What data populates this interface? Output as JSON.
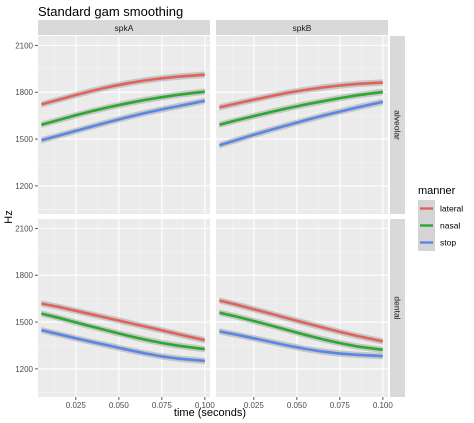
{
  "chart_data": {
    "type": "line",
    "title": "Standard gam smoothing",
    "xlabel": "time (seconds)",
    "ylabel": "Hz",
    "xlim": [
      0.003,
      0.103
    ],
    "ylim": [
      1020,
      2160
    ],
    "x_ticks": [
      0.025,
      0.05,
      0.075,
      0.1
    ],
    "x_tick_labels": [
      "0.025",
      "0.050",
      "0.075",
      "0.100"
    ],
    "y_ticks": [
      1200,
      1500,
      1800,
      2100
    ],
    "y_tick_labels": [
      "1200",
      "1500",
      "1800",
      "2100"
    ],
    "grid": true,
    "legend": {
      "title": "manner",
      "position": "right",
      "entries": [
        {
          "label": "lateral",
          "color": "#E0635B"
        },
        {
          "label": "nasal",
          "color": "#2BA830"
        },
        {
          "label": "stop",
          "color": "#5A86E6"
        }
      ]
    },
    "col_strips": [
      "spkA",
      "spkB"
    ],
    "row_strips": [
      "alveolar",
      "dental"
    ],
    "x": [
      0.005,
      0.015,
      0.025,
      0.035,
      0.045,
      0.055,
      0.065,
      0.075,
      0.085,
      0.1
    ],
    "panels": [
      {
        "col": "spkA",
        "row": "alveolar",
        "series": [
          {
            "name": "lateral",
            "values": [
              1722,
              1752,
              1782,
              1810,
              1835,
              1857,
              1875,
              1889,
              1900,
              1912
            ]
          },
          {
            "name": "nasal",
            "values": [
              1592,
              1622,
              1652,
              1680,
              1706,
              1729,
              1750,
              1768,
              1784,
              1803
            ]
          },
          {
            "name": "stop",
            "values": [
              1492,
              1522,
              1552,
              1582,
              1612,
              1640,
              1666,
              1690,
              1712,
              1745
            ]
          }
        ]
      },
      {
        "col": "spkB",
        "row": "alveolar",
        "series": [
          {
            "name": "lateral",
            "values": [
              1703,
              1728,
              1752,
              1775,
              1797,
              1815,
              1830,
              1843,
              1853,
              1862
            ]
          },
          {
            "name": "nasal",
            "values": [
              1592,
              1620,
              1647,
              1673,
              1698,
              1721,
              1742,
              1762,
              1780,
              1802
            ]
          },
          {
            "name": "stop",
            "values": [
              1460,
              1494,
              1527,
              1559,
              1590,
              1620,
              1649,
              1676,
              1702,
              1738
            ]
          }
        ]
      },
      {
        "col": "spkA",
        "row": "dental",
        "series": [
          {
            "name": "lateral",
            "values": [
              1618,
              1597,
              1572,
              1547,
              1522,
              1497,
              1472,
              1447,
              1421,
              1384
            ]
          },
          {
            "name": "nasal",
            "values": [
              1554,
              1527,
              1498,
              1469,
              1441,
              1413,
              1388,
              1366,
              1348,
              1326
            ]
          },
          {
            "name": "stop",
            "values": [
              1448,
              1422,
              1396,
              1371,
              1347,
              1323,
              1300,
              1280,
              1265,
              1251
            ]
          }
        ]
      },
      {
        "col": "spkB",
        "row": "dental",
        "series": [
          {
            "name": "lateral",
            "values": [
              1638,
              1611,
              1582,
              1553,
              1523,
              1494,
              1465,
              1437,
              1411,
              1376
            ]
          },
          {
            "name": "nasal",
            "values": [
              1560,
              1535,
              1507,
              1478,
              1448,
              1418,
              1390,
              1365,
              1344,
              1322
            ]
          },
          {
            "name": "stop",
            "values": [
              1440,
              1419,
              1396,
              1372,
              1349,
              1328,
              1311,
              1298,
              1290,
              1282
            ]
          }
        ]
      }
    ]
  }
}
